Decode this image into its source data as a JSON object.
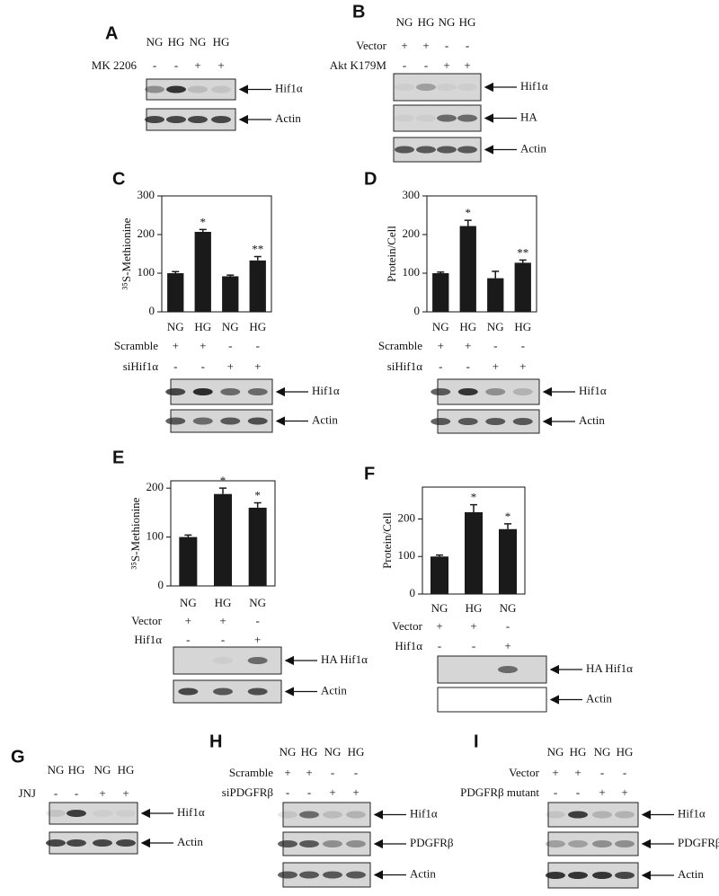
{
  "panels": [
    {
      "letter": "A",
      "lanes": [
        "NG",
        "HG",
        "NG",
        "HG"
      ],
      "treatments": [
        {
          "name": "MK 2206",
          "signs": [
            "-",
            "-",
            "+",
            "+"
          ]
        }
      ],
      "bands": [
        "Hif1α",
        "Actin"
      ]
    },
    {
      "letter": "B",
      "lanes": [
        "NG",
        "HG",
        "NG",
        "HG"
      ],
      "treatments": [
        {
          "name": "Vector",
          "signs": [
            "+",
            "+",
            "-",
            "-"
          ]
        },
        {
          "name": "Akt K179M",
          "signs": [
            "-",
            "-",
            "+",
            "+"
          ]
        }
      ],
      "bands": [
        "Hif1α",
        "HA",
        "Actin"
      ]
    },
    {
      "letter": "C",
      "treatments": [
        {
          "name": "Scramble",
          "signs": [
            "+",
            "+",
            "-",
            "-"
          ]
        },
        {
          "name": "siHif1α",
          "signs": [
            "-",
            "-",
            "+",
            "+"
          ]
        }
      ],
      "bands": [
        "Hif1α",
        "Actin"
      ]
    },
    {
      "letter": "D",
      "treatments": [
        {
          "name": "Scramble",
          "signs": [
            "+",
            "+",
            "-",
            "-"
          ]
        },
        {
          "name": "siHif1α",
          "signs": [
            "-",
            "-",
            "+",
            "+"
          ]
        }
      ],
      "bands": [
        "Hif1α",
        "Actin"
      ]
    },
    {
      "letter": "E",
      "treatments": [
        {
          "name": "Vector",
          "signs": [
            "+",
            "+",
            "-"
          ]
        },
        {
          "name": "Hif1α",
          "signs": [
            "-",
            "-",
            "+"
          ]
        }
      ],
      "bands": [
        "HA Hif1α",
        "Actin"
      ]
    },
    {
      "letter": "F",
      "treatments": [
        {
          "name": "Vector",
          "signs": [
            "+",
            "+",
            "-"
          ]
        },
        {
          "name": "Hif1α",
          "signs": [
            "-",
            "-",
            "+"
          ]
        }
      ],
      "bands": [
        "HA Hif1α",
        "Actin"
      ]
    },
    {
      "letter": "G",
      "lanes": [
        "NG",
        "HG",
        "NG",
        "HG"
      ],
      "treatments": [
        {
          "name": "JNJ",
          "signs": [
            "-",
            "-",
            "+",
            "+"
          ]
        }
      ],
      "bands": [
        "Hif1α",
        "Actin"
      ]
    },
    {
      "letter": "H",
      "lanes": [
        "NG",
        "HG",
        "NG",
        "HG"
      ],
      "treatments": [
        {
          "name": "Scramble",
          "signs": [
            "+",
            "+",
            "-",
            "-"
          ]
        },
        {
          "name": "siPDGFRβ",
          "signs": [
            "-",
            "-",
            "+",
            "+"
          ]
        }
      ],
      "bands": [
        "Hif1α",
        "PDGFRβ",
        "Actin"
      ]
    },
    {
      "letter": "I",
      "lanes": [
        "NG",
        "HG",
        "NG",
        "HG"
      ],
      "treatments": [
        {
          "name": "Vector",
          "signs": [
            "+",
            "+",
            "-",
            "-"
          ]
        },
        {
          "name": "PDGFRβ mutant",
          "signs": [
            "-",
            "-",
            "+",
            "+"
          ]
        }
      ],
      "bands": [
        "Hif1α",
        "PDGFRβ",
        "Actin"
      ]
    }
  ],
  "chart_data": [
    {
      "type": "bar",
      "ylabel": "³⁵S-Methionine",
      "categories": [
        "NG",
        "HG",
        "NG",
        "HG"
      ],
      "values": [
        100,
        207,
        92,
        133
      ],
      "errors": [
        4,
        6,
        3,
        10
      ],
      "annotations": [
        null,
        "*",
        null,
        "**"
      ],
      "color": "#1a1a1a",
      "ylim": [
        0,
        300
      ],
      "yticks": [
        0,
        100,
        200,
        300
      ]
    },
    {
      "type": "bar",
      "ylabel": "Protein/Cell",
      "categories": [
        "NG",
        "HG",
        "NG",
        "HG"
      ],
      "values": [
        100,
        222,
        87,
        127
      ],
      "errors": [
        3,
        15,
        18,
        7
      ],
      "annotations": [
        null,
        "*",
        null,
        "**"
      ],
      "color": "#1a1a1a",
      "ylim": [
        0,
        300
      ],
      "yticks": [
        0,
        100,
        200,
        300
      ]
    },
    {
      "type": "bar",
      "ylabel": "³⁵S-Methionine",
      "categories": [
        "NG",
        "HG",
        "NG"
      ],
      "values": [
        100,
        188,
        160
      ],
      "errors": [
        4,
        12,
        10
      ],
      "annotations": [
        null,
        "*",
        "*"
      ],
      "color": "#1a1a1a",
      "ylim": [
        0,
        215
      ],
      "yticks": [
        0,
        100,
        200
      ]
    },
    {
      "type": "bar",
      "ylabel": "Protein/Cell",
      "categories": [
        "NG",
        "HG",
        "NG"
      ],
      "values": [
        100,
        218,
        173
      ],
      "errors": [
        4,
        20,
        14
      ],
      "annotations": [
        null,
        "*",
        "*"
      ],
      "color": "#1a1a1a",
      "ylim": [
        0,
        285
      ],
      "yticks": [
        0,
        100,
        200
      ]
    }
  ]
}
